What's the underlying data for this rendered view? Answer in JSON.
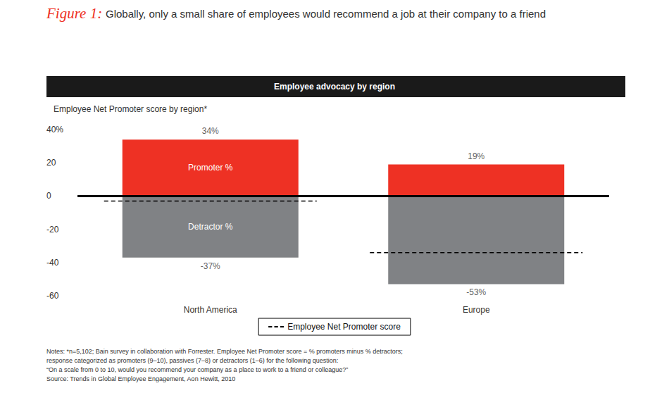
{
  "chart_data": {
    "type": "bar",
    "title_prefix": "Figure 1:",
    "title": "Globally, only a small share of employees would recommend a job at their company to a friend",
    "header": "Employee advocacy by region",
    "y_label": "Employee Net Promoter score by region*",
    "categories": [
      "North America",
      "Europe"
    ],
    "stacked": true,
    "data_labels": true,
    "grid": false,
    "legend": "bottom",
    "series": [
      {
        "name": "Promoter %",
        "type": "bar",
        "color": "#ee3124",
        "values": [
          34,
          19
        ],
        "value_labels": [
          "34%",
          "19%"
        ]
      },
      {
        "name": "Detractor %",
        "type": "bar",
        "color": "#808285",
        "values": [
          -37,
          -53
        ],
        "value_labels": [
          "-37%",
          "-53%"
        ]
      },
      {
        "name": "Employee Net Promoter score",
        "type": "line",
        "line_style": "dashed",
        "color": "#000000",
        "values": [
          -3,
          -34
        ]
      }
    ],
    "ylim": [
      -60,
      40
    ],
    "yticks": [
      -60,
      -40,
      -20,
      0,
      20,
      {
        "value": 40,
        "label": "40%"
      }
    ],
    "notes": [
      "Notes: *n=5,102; Bain survey in collaboration with Forrester. Employee Net Promoter score = % promoters minus % detractors;",
      "response categorized as promoters (9–10), passives (7–8) or detractors (1–6) for the following question:",
      "“On a scale from 0 to 10, would you recommend your company as a place to work to a friend or colleague?”",
      "Source: Trends in Global Employee Engagement, Aon Hewitt, 2010"
    ]
  }
}
